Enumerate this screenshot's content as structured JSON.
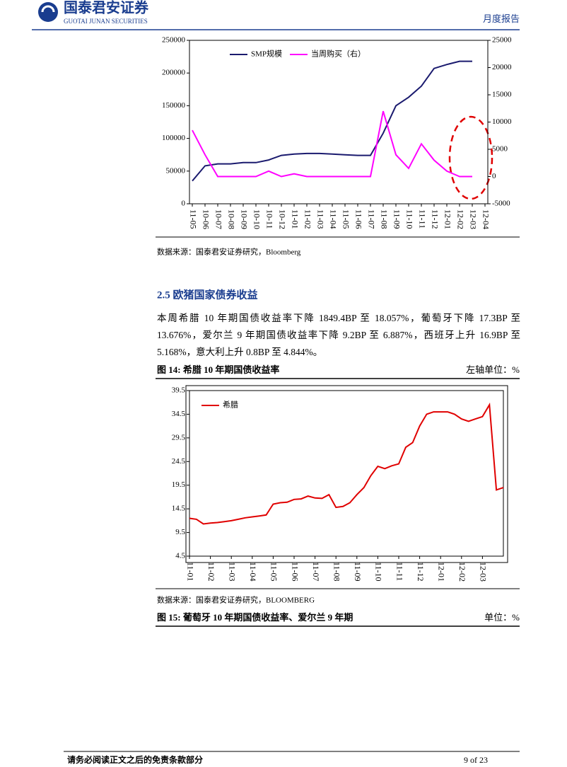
{
  "header": {
    "brand": "国泰君安证券",
    "brand_en": "GUOTAI JUNAN SECURITIES",
    "report_type": "月度报告"
  },
  "charts": [
    {
      "chart_data": {
        "type": "line",
        "categories": [
          "11-05",
          "10-06",
          "10-07",
          "10-08",
          "10-09",
          "10-10",
          "10-11",
          "10-12",
          "11-01",
          "11-02",
          "11-03",
          "11-04",
          "11-05",
          "11-06",
          "11-07",
          "11-08",
          "11-09",
          "11-10",
          "11-11",
          "11-12",
          "12-01",
          "12-02",
          "12-03",
          "12-04"
        ],
        "series": [
          {
            "name": "SMP规模",
            "color": "#1a1a6e",
            "values": [
              35000,
              58000,
              61000,
              61000,
              63000,
              63000,
              67000,
              74000,
              76000,
              77000,
              77000,
              76000,
              75000,
              74000,
              74000,
              108000,
              150000,
              163000,
              180000,
              207000,
              213000,
              218000,
              218000,
              null
            ]
          },
          {
            "name": "当周购买（右）",
            "color": "#ff00ff",
            "axis": "y2",
            "values": [
              8500,
              4000,
              0,
              0,
              0,
              0,
              1000,
              0,
              500,
              0,
              0,
              0,
              0,
              0,
              0,
              12000,
              4000,
              1500,
              6000,
              3000,
              1000,
              0,
              0,
              null
            ]
          }
        ],
        "ylim": [
          0,
          250000
        ],
        "yticks": [
          0,
          50000,
          100000,
          150000,
          200000,
          250000
        ],
        "y2lim": [
          -5000,
          25000
        ],
        "y2ticks": [
          -5000,
          0,
          5000,
          10000,
          15000,
          20000,
          25000
        ],
        "legend": "top"
      }
    },
    {
      "chart_data": {
        "type": "line",
        "categories": [
          "11-01",
          null,
          null,
          "11-02",
          null,
          null,
          "11-03",
          null,
          null,
          "11-04",
          null,
          null,
          "11-05",
          null,
          null,
          "11-06",
          null,
          null,
          "11-07",
          null,
          null,
          "11-08",
          null,
          null,
          "11-09",
          null,
          null,
          "11-10",
          null,
          null,
          "11-11",
          null,
          null,
          "11-12",
          null,
          null,
          "12-01",
          null,
          null,
          "12-02",
          null,
          null,
          "12-03",
          null,
          null,
          null
        ],
        "series": [
          {
            "name": "希腊",
            "color": "#e00000",
            "values": [
              12.5,
              12.3,
              11.3,
              11.5,
              11.6,
              11.8,
              12.0,
              12.3,
              12.6,
              12.8,
              13.0,
              13.2,
              15.5,
              15.8,
              15.9,
              16.5,
              16.6,
              17.2,
              16.8,
              16.7,
              17.5,
              14.8,
              15.0,
              15.8,
              17.5,
              19.0,
              21.5,
              23.5,
              23.0,
              23.6,
              24.0,
              27.5,
              28.5,
              32.0,
              34.5,
              35.0,
              35.0,
              35.0,
              34.5,
              33.5,
              33.0,
              33.5,
              34.0,
              36.5,
              18.5,
              19.0
            ]
          }
        ],
        "ylim": [
          4.5,
          39.5
        ],
        "yticks": [
          4.5,
          9.5,
          14.5,
          19.5,
          24.5,
          29.5,
          34.5,
          39.5
        ],
        "legend": "upper left"
      }
    }
  ],
  "source1": "数据来源：国泰君安证券研究，Bloomberg",
  "section": {
    "title": "2.5 欧猪国家债券收益",
    "text": "本周希腊 10 年期国债收益率下降 1849.4BP 至 18.057%，葡萄牙下降 17.3BP 至 13.676%，爱尔兰 9 年期国债收益率下降 9.2BP 至 6.887%，西班牙上升 16.9BP 至 5.168%，意大利上升 0.8BP 至 4.844%。"
  },
  "figure14": {
    "title": "图 14:  希腊 10 年期国债收益率",
    "unit": "左轴单位：%"
  },
  "source2": "数据来源：国泰君安证券研究，BLOOMBERG",
  "figure15": {
    "title": "图 15:  葡萄牙 10 年期国债收益率、爱尔兰 9 年期",
    "unit": "单位：%"
  },
  "footer": {
    "disclaimer": "请务必阅读正文之后的免责条款部分",
    "page": "9 of 23"
  }
}
